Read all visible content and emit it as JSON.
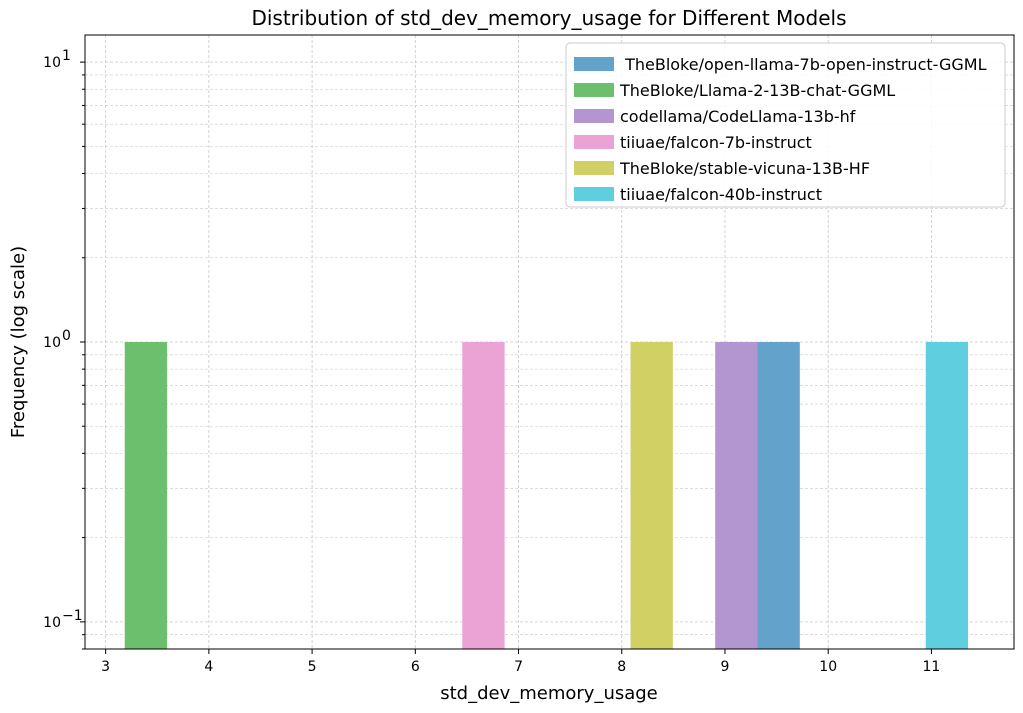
{
  "chart_data": {
    "type": "bar",
    "title": "Distribution of std_dev_memory_usage for Different Models",
    "xlabel": "std_dev_memory_usage",
    "ylabel": "Frequency (log scale)",
    "y_scale": "log",
    "xlim": [
      2.8,
      11.8
    ],
    "ylim": [
      0.08,
      12.5
    ],
    "x_ticks": [
      3,
      4,
      5,
      6,
      7,
      8,
      9,
      10,
      11
    ],
    "y_ticks": [
      {
        "value": 0.1,
        "base": "10",
        "exp": "−1"
      },
      {
        "value": 1,
        "base": "10",
        "exp": "0"
      },
      {
        "value": 10,
        "base": "10",
        "exp": "1"
      }
    ],
    "grid": true,
    "legend_position": "top-right",
    "bar_width": 0.41,
    "series": [
      {
        "name": " TheBloke/open-llama-7b-open-instruct-GGML",
        "color": "#63a2cb",
        "x": 9.52,
        "value": 1
      },
      {
        "name": "TheBloke/Llama-2-13B-chat-GGML",
        "color": "#6cbf6c",
        "x": 3.39,
        "value": 1
      },
      {
        "name": "codellama/CodeLlama-13b-hf",
        "color": "#b396cf",
        "x": 9.11,
        "value": 1
      },
      {
        "name": "tiiuae/falcon-7b-instruct",
        "color": "#eba2d4",
        "x": 6.66,
        "value": 1
      },
      {
        "name": "TheBloke/stable-vicuna-13B-HF",
        "color": "#d0d065",
        "x": 8.29,
        "value": 1
      },
      {
        "name": "tiiuae/falcon-40b-instruct",
        "color": "#5fcfdf",
        "x": 11.15,
        "value": 1
      }
    ]
  }
}
